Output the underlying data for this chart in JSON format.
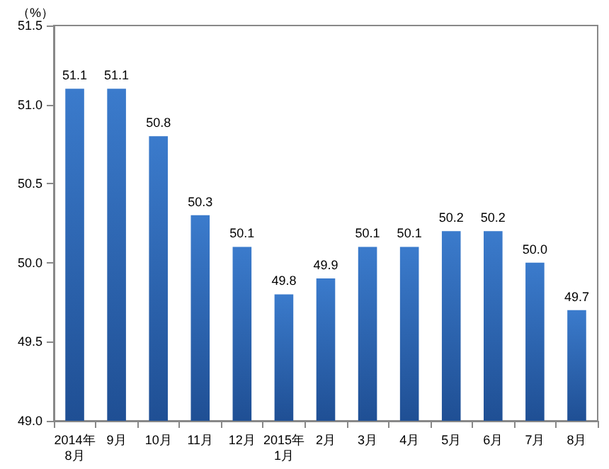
{
  "chart_data": {
    "type": "bar",
    "ylabel": "（%）",
    "categories": [
      "2014年\n8月",
      "9月",
      "10月",
      "11月",
      "12月",
      "2015年\n1月",
      "2月",
      "3月",
      "4月",
      "5月",
      "6月",
      "7月",
      "8月"
    ],
    "values": [
      51.1,
      51.1,
      50.8,
      50.3,
      50.1,
      49.8,
      49.9,
      50.1,
      50.1,
      50.2,
      50.2,
      50.0,
      49.7
    ],
    "value_labels": [
      "51.1",
      "51.1",
      "50.8",
      "50.3",
      "50.1",
      "49.8",
      "49.9",
      "50.1",
      "50.1",
      "50.2",
      "50.2",
      "50.0",
      "49.7"
    ],
    "color": "#3b7bcc",
    "ylim": [
      49,
      51.5
    ],
    "yticks": [
      {
        "value": 49,
        "label": "49.0"
      },
      {
        "value": 49.5,
        "label": "49.5"
      },
      {
        "value": 50,
        "label": "50.0"
      },
      {
        "value": 50.5,
        "label": "50.5"
      },
      {
        "value": 51,
        "label": "51.0"
      },
      {
        "value": 51.5,
        "label": "51.5"
      }
    ],
    "grid": false
  }
}
